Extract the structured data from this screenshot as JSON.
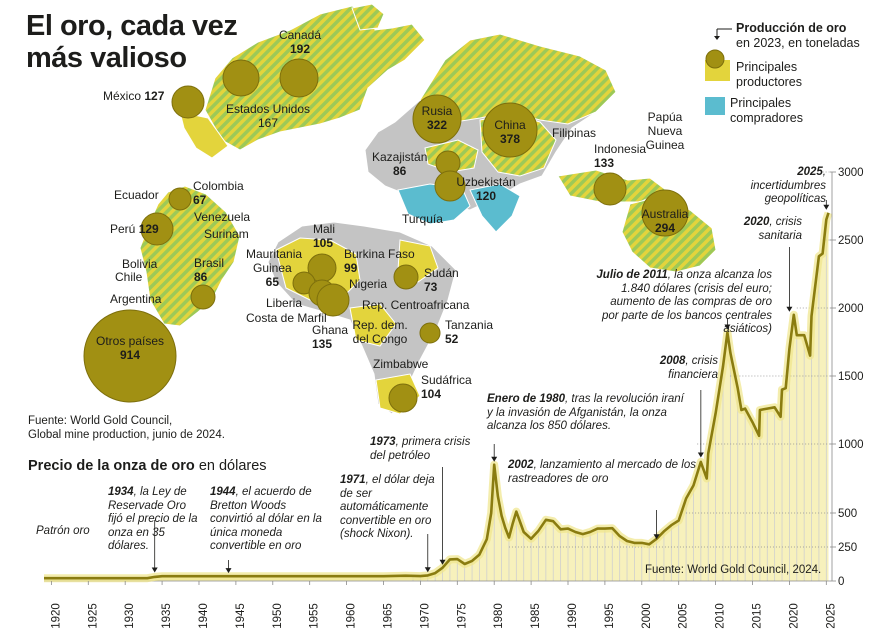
{
  "title_line1": "El oro, cada vez",
  "title_line2": "más valioso",
  "legend": {
    "production_title": "Producción de oro",
    "production_sub": "en 2023, en toneladas",
    "producers": "Principales productores",
    "buyers": "Principales compradores",
    "colors": {
      "producer": "#e3d43c",
      "buyer": "#5bbccf",
      "bubble": "#a19013",
      "bubble_edge": "#7d6f0c",
      "land": "#c4c4c4",
      "stripe_green": "#9dc957"
    }
  },
  "countries": [
    {
      "name": "Canadá",
      "value": "192"
    },
    {
      "name": "Estados Unidos",
      "value": "167"
    },
    {
      "name": "México",
      "value": "127"
    },
    {
      "name": "Rusia",
      "value": "322"
    },
    {
      "name": "China",
      "value": "378"
    },
    {
      "name": "Kazajistán",
      "value": "86"
    },
    {
      "name": "Uzbekistán",
      "value": "120"
    },
    {
      "name": "Turquía",
      "value": ""
    },
    {
      "name": "Filipinas",
      "value": ""
    },
    {
      "name": "Papúa Nueva Guinea",
      "value": ""
    },
    {
      "name": "Indonesia",
      "value": "133"
    },
    {
      "name": "Australia",
      "value": "294"
    },
    {
      "name": "Ecuador",
      "value": ""
    },
    {
      "name": "Colombia",
      "value": "67"
    },
    {
      "name": "Venezuela",
      "value": ""
    },
    {
      "name": "Surinam",
      "value": ""
    },
    {
      "name": "Perú",
      "value": "129"
    },
    {
      "name": "Bolivia",
      "value": ""
    },
    {
      "name": "Chile",
      "value": ""
    },
    {
      "name": "Brasil",
      "value": "86"
    },
    {
      "name": "Argentina",
      "value": ""
    },
    {
      "name": "Otros países",
      "value": "914"
    },
    {
      "name": "Mali",
      "value": "105"
    },
    {
      "name": "Mauritania",
      "value": ""
    },
    {
      "name": "Guinea",
      "value": "65"
    },
    {
      "name": "Burkina Faso",
      "value": "99"
    },
    {
      "name": "Sudán",
      "value": "73"
    },
    {
      "name": "Nigeria",
      "value": ""
    },
    {
      "name": "Liberia",
      "value": ""
    },
    {
      "name": "Costa de Marfil",
      "value": ""
    },
    {
      "name": "Ghana",
      "value": "135"
    },
    {
      "name": "Rep. Centroafricana",
      "value": ""
    },
    {
      "name": "Rep. dem. del Congo",
      "value": ""
    },
    {
      "name": "Tanzania",
      "value": "52"
    },
    {
      "name": "Zimbabwe",
      "value": ""
    },
    {
      "name": "Sudáfrica",
      "value": "104"
    }
  ],
  "source_map": "Fuente: World Gold Council,\nGlobal mine production, junio de 2024.",
  "chart_title_bold": "Precio de la onza de oro",
  "chart_title_rest": " en dólares",
  "source_chart": "Fuente: World Gold Council, 2024.",
  "annotations": [
    {
      "id": "patron",
      "bold": "",
      "text": "Patrón oro"
    },
    {
      "id": "y1934",
      "bold": "1934",
      "text": ", la Ley de Reservade Oro fijó el precio de la onza en 35 dólares."
    },
    {
      "id": "y1944",
      "bold": "1944",
      "text": ", el acuerdo de Bretton Woods convirtió al dólar en la única moneda convertible en oro"
    },
    {
      "id": "y1971",
      "bold": "1971",
      "text": ", el dólar deja de ser automáticamente convertible en oro (shock Nixon)."
    },
    {
      "id": "y1973",
      "bold": "1973",
      "text": ", primera crisis del petróleo"
    },
    {
      "id": "y1980",
      "bold": "Enero de 1980",
      "text": ",  tras la revolución iraní y la invasión de Afganistán, la onza alcanza los 850 dólares."
    },
    {
      "id": "y2002",
      "bold": "2002",
      "text": ", lanzamiento al mercado de los rastreadores de oro"
    },
    {
      "id": "y2008",
      "bold": "2008",
      "text": ", crisis financiera"
    },
    {
      "id": "y2011",
      "bold": "Julio de 2011",
      "text": ", la onza alcanza los 1.840 dólares (crisis del euro; aumento de las compras de oro por parte de los bancos centrales asiáticos)"
    },
    {
      "id": "y2020",
      "bold": "2020",
      "text": ", crisis sanitaria"
    },
    {
      "id": "y2025",
      "bold": "2025",
      "text": ", incertidumbres geopolíticas"
    }
  ],
  "chart_data": {
    "type": "line",
    "title": "Precio de la onza de oro en dólares",
    "xlabel": "",
    "ylabel": "dólares",
    "xlim": [
      1919,
      2025.5
    ],
    "ylim": [
      0,
      3000
    ],
    "x_ticks": [
      1920,
      1925,
      1930,
      1935,
      1940,
      1945,
      1950,
      1955,
      1960,
      1965,
      1970,
      1975,
      1980,
      1985,
      1990,
      1995,
      2000,
      2005,
      2010,
      2015,
      2020,
      2025
    ],
    "y_ticks": [
      0,
      250,
      500,
      1000,
      1500,
      2000,
      2500,
      3000
    ],
    "series": [
      {
        "name": "Precio de la onza de oro",
        "x": [
          1919,
          1920,
          1925,
          1930,
          1933,
          1934,
          1935,
          1940,
          1945,
          1950,
          1955,
          1960,
          1965,
          1968,
          1970,
          1971,
          1972,
          1973,
          1974,
          1975,
          1976,
          1977,
          1978,
          1979,
          1979.6,
          1980,
          1980.5,
          1981,
          1981.5,
          1982,
          1982.5,
          1983,
          1984,
          1985,
          1986,
          1987,
          1988,
          1989,
          1990,
          1991,
          1992,
          1993,
          1994,
          1995,
          1996,
          1997,
          1998,
          1999,
          2000,
          2001,
          2002,
          2003,
          2004,
          2005,
          2006,
          2007,
          2008,
          2008.8,
          2009,
          2010,
          2011,
          2011.6,
          2012,
          2013,
          2013.5,
          2014,
          2015,
          2015.9,
          2016,
          2017,
          2018,
          2018.8,
          2019,
          2019.5,
          2020,
          2020.6,
          2021,
          2022,
          2022.8,
          2023,
          2024,
          2024.5,
          2025,
          2025.3
        ],
        "y": [
          20.67,
          20.67,
          20.67,
          20.67,
          20.67,
          30,
          35,
          35,
          35,
          35,
          35,
          35,
          35,
          39,
          36,
          41,
          58,
          97,
          159,
          161,
          125,
          148,
          194,
          307,
          500,
          850,
          620,
          480,
          390,
          320,
          420,
          510,
          360,
          310,
          370,
          450,
          440,
          380,
          385,
          360,
          345,
          360,
          385,
          385,
          388,
          330,
          294,
          280,
          280,
          270,
          310,
          365,
          410,
          445,
          605,
          700,
          870,
          750,
          930,
          1225,
          1570,
          1820,
          1670,
          1410,
          1250,
          1260,
          1160,
          1060,
          1250,
          1260,
          1270,
          1200,
          1400,
          1410,
          1700,
          1950,
          1800,
          1800,
          1650,
          1940,
          2380,
          2400,
          2650,
          2700
        ]
      }
    ]
  }
}
